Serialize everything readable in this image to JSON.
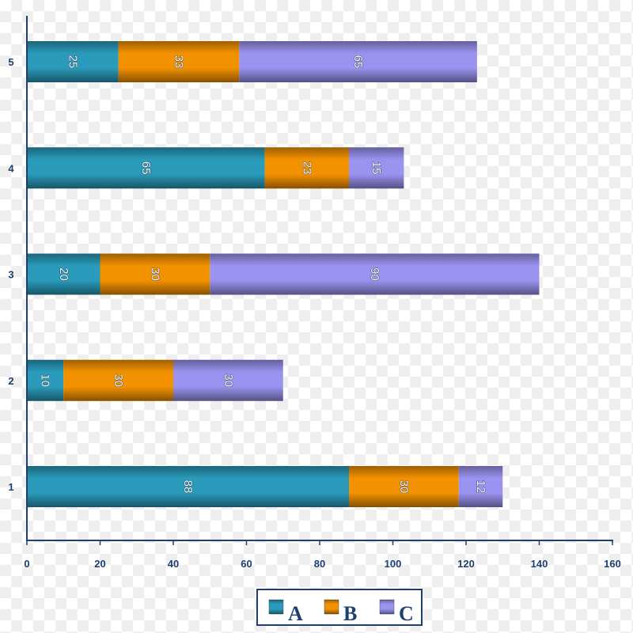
{
  "chart_data": {
    "type": "bar",
    "orientation": "horizontal",
    "stacked": true,
    "categories": [
      "1",
      "2",
      "3",
      "4",
      "5"
    ],
    "series": [
      {
        "name": "A",
        "values": [
          88,
          10,
          20,
          65,
          25
        ],
        "color": "#2a9bbb"
      },
      {
        "name": "B",
        "values": [
          30,
          30,
          30,
          23,
          33
        ],
        "color": "#f39200"
      },
      {
        "name": "C",
        "values": [
          12,
          30,
          90,
          15,
          65
        ],
        "color": "#9b93f0"
      }
    ],
    "title": "",
    "xlabel": "",
    "ylabel": "",
    "xlim": [
      0,
      160
    ],
    "xticks": [
      "0",
      "20",
      "40",
      "60",
      "80",
      "100",
      "120",
      "140",
      "160"
    ],
    "data_labels": true,
    "grid": false,
    "legend": "bottom",
    "axis_color": "#1f3f6e"
  }
}
